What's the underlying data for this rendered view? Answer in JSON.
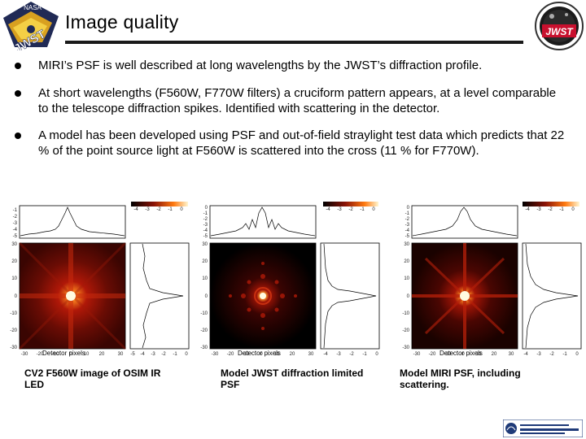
{
  "title": "Image quality",
  "bullets": [
    "MIRI’s PSF is well described at long wavelengths by the JWST’s diffraction profile.",
    "At short wavelengths (F560W, F770W filters) a cruciform pattern appears, at a level comparable to the telescope diffraction spikes.  Identified with scattering in the detector.",
    "A model has been developed using PSF and out-of-field straylight test data which predicts that 22 % of the point source light at F560W is scattered into the cross (11 % for F770W)."
  ],
  "logos": {
    "left": "JWST",
    "right": "JWST"
  },
  "panels": [
    {
      "caption": "CV2 F560W image of OSIM IR LED",
      "xlabel": "Detector pixels",
      "x_ticks": [
        "-30",
        "-20",
        "-10",
        "0",
        "10",
        "20",
        "30"
      ],
      "y_ticks": [
        "30",
        "20",
        "10",
        "0",
        "-10",
        "-20",
        "-30"
      ],
      "top_ticks": [
        "-1",
        "-2",
        "-3",
        "-4",
        "-5"
      ],
      "side_ticks": [
        "-5",
        "-4",
        "-3",
        "-2",
        "-1",
        "0"
      ],
      "colorbar_ticks": [
        "-4",
        "-3",
        "-2",
        "-1",
        "0"
      ]
    },
    {
      "caption": "Model JWST diffraction limited PSF",
      "xlabel": "Detector pixels",
      "x_ticks": [
        "-30",
        "-20",
        "-10",
        "0",
        "10",
        "20",
        "30"
      ],
      "y_ticks": [
        "30",
        "20",
        "10",
        "0",
        "-10",
        "-20",
        "-30"
      ],
      "top_ticks": [
        "0",
        "-1",
        "-2",
        "-3",
        "-4",
        "-5"
      ],
      "side_ticks": [
        "-4",
        "-3",
        "-2",
        "-1",
        "0"
      ],
      "colorbar_ticks": [
        "-4",
        "-3",
        "-2",
        "-1",
        "0"
      ]
    },
    {
      "caption": "Model MIRI PSF, including scattering.",
      "xlabel": "Detector pixels",
      "x_ticks": [
        "-30",
        "-20",
        "-10",
        "0",
        "10",
        "20",
        "30"
      ],
      "y_ticks": [
        "30",
        "20",
        "10",
        "0",
        "-10",
        "-20",
        "-30"
      ],
      "top_ticks": [
        "0",
        "-1",
        "-2",
        "-3",
        "-4",
        "-5"
      ],
      "side_ticks": [
        "-4",
        "-3",
        "-2",
        "-1",
        "0"
      ],
      "colorbar_ticks": [
        "-4",
        "-3",
        "-2",
        "-1",
        "0"
      ]
    }
  ],
  "colors": {
    "title_rule": "#1a1a1a",
    "logo_red": "#c8102e",
    "plot_red": "#d22a10"
  }
}
